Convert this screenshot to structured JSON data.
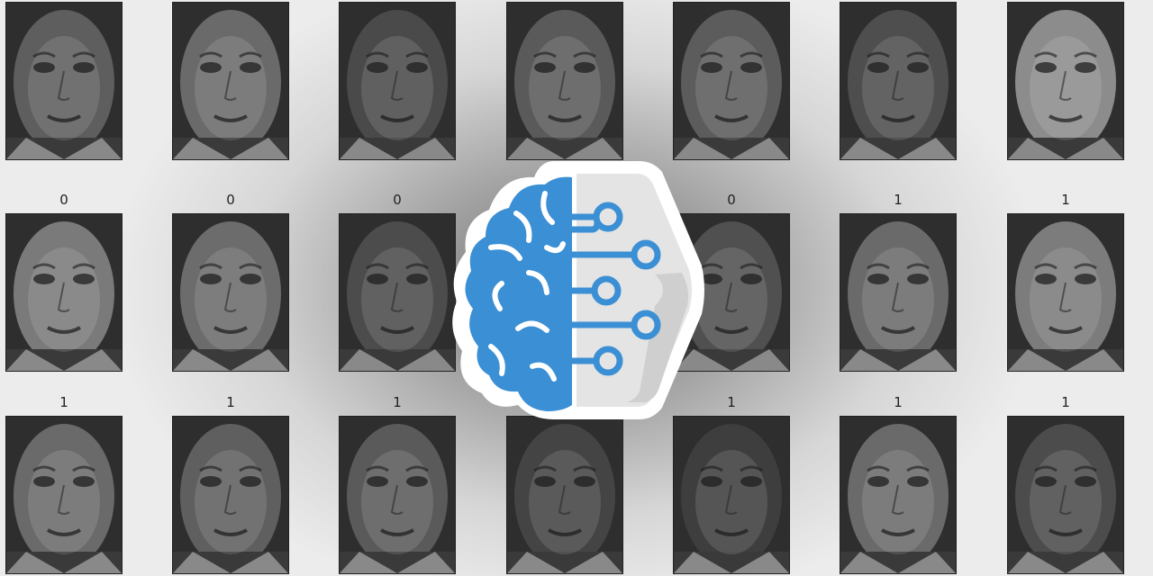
{
  "figure": {
    "columns": 7,
    "rows": [
      {
        "labels": [
          "",
          "",
          "",
          "",
          "",
          "",
          ""
        ],
        "tones": [
          "#5e5e5e",
          "#6a6a6a",
          "#4a4a4a",
          "#5a5a5a",
          "#5c5c5c",
          "#4e4e4e",
          "#8c8c8c"
        ]
      },
      {
        "labels": [
          "0",
          "0",
          "0",
          "",
          "0",
          "1",
          "1"
        ],
        "tones": [
          "#7a7a7a",
          "#6c6c6c",
          "#4c4c4c",
          "#555555",
          "#505050",
          "#6a6a6a",
          "#7c7c7c"
        ]
      },
      {
        "labels": [
          "1",
          "1",
          "1",
          "",
          "1",
          "1",
          "1"
        ],
        "tones": [
          "#6a6a6a",
          "#5f5f5f",
          "#5a5a5a",
          "#444444",
          "#3e3e3e",
          "#6a6a6a",
          "#4c4c4c"
        ]
      }
    ]
  },
  "logo": {
    "icon": "brain-circuit-logo-icon",
    "colors": {
      "brain": "#3b8fd4",
      "circuit": "#3b8fd4",
      "panel": "#e4e4e4",
      "outline": "#ffffff"
    }
  }
}
